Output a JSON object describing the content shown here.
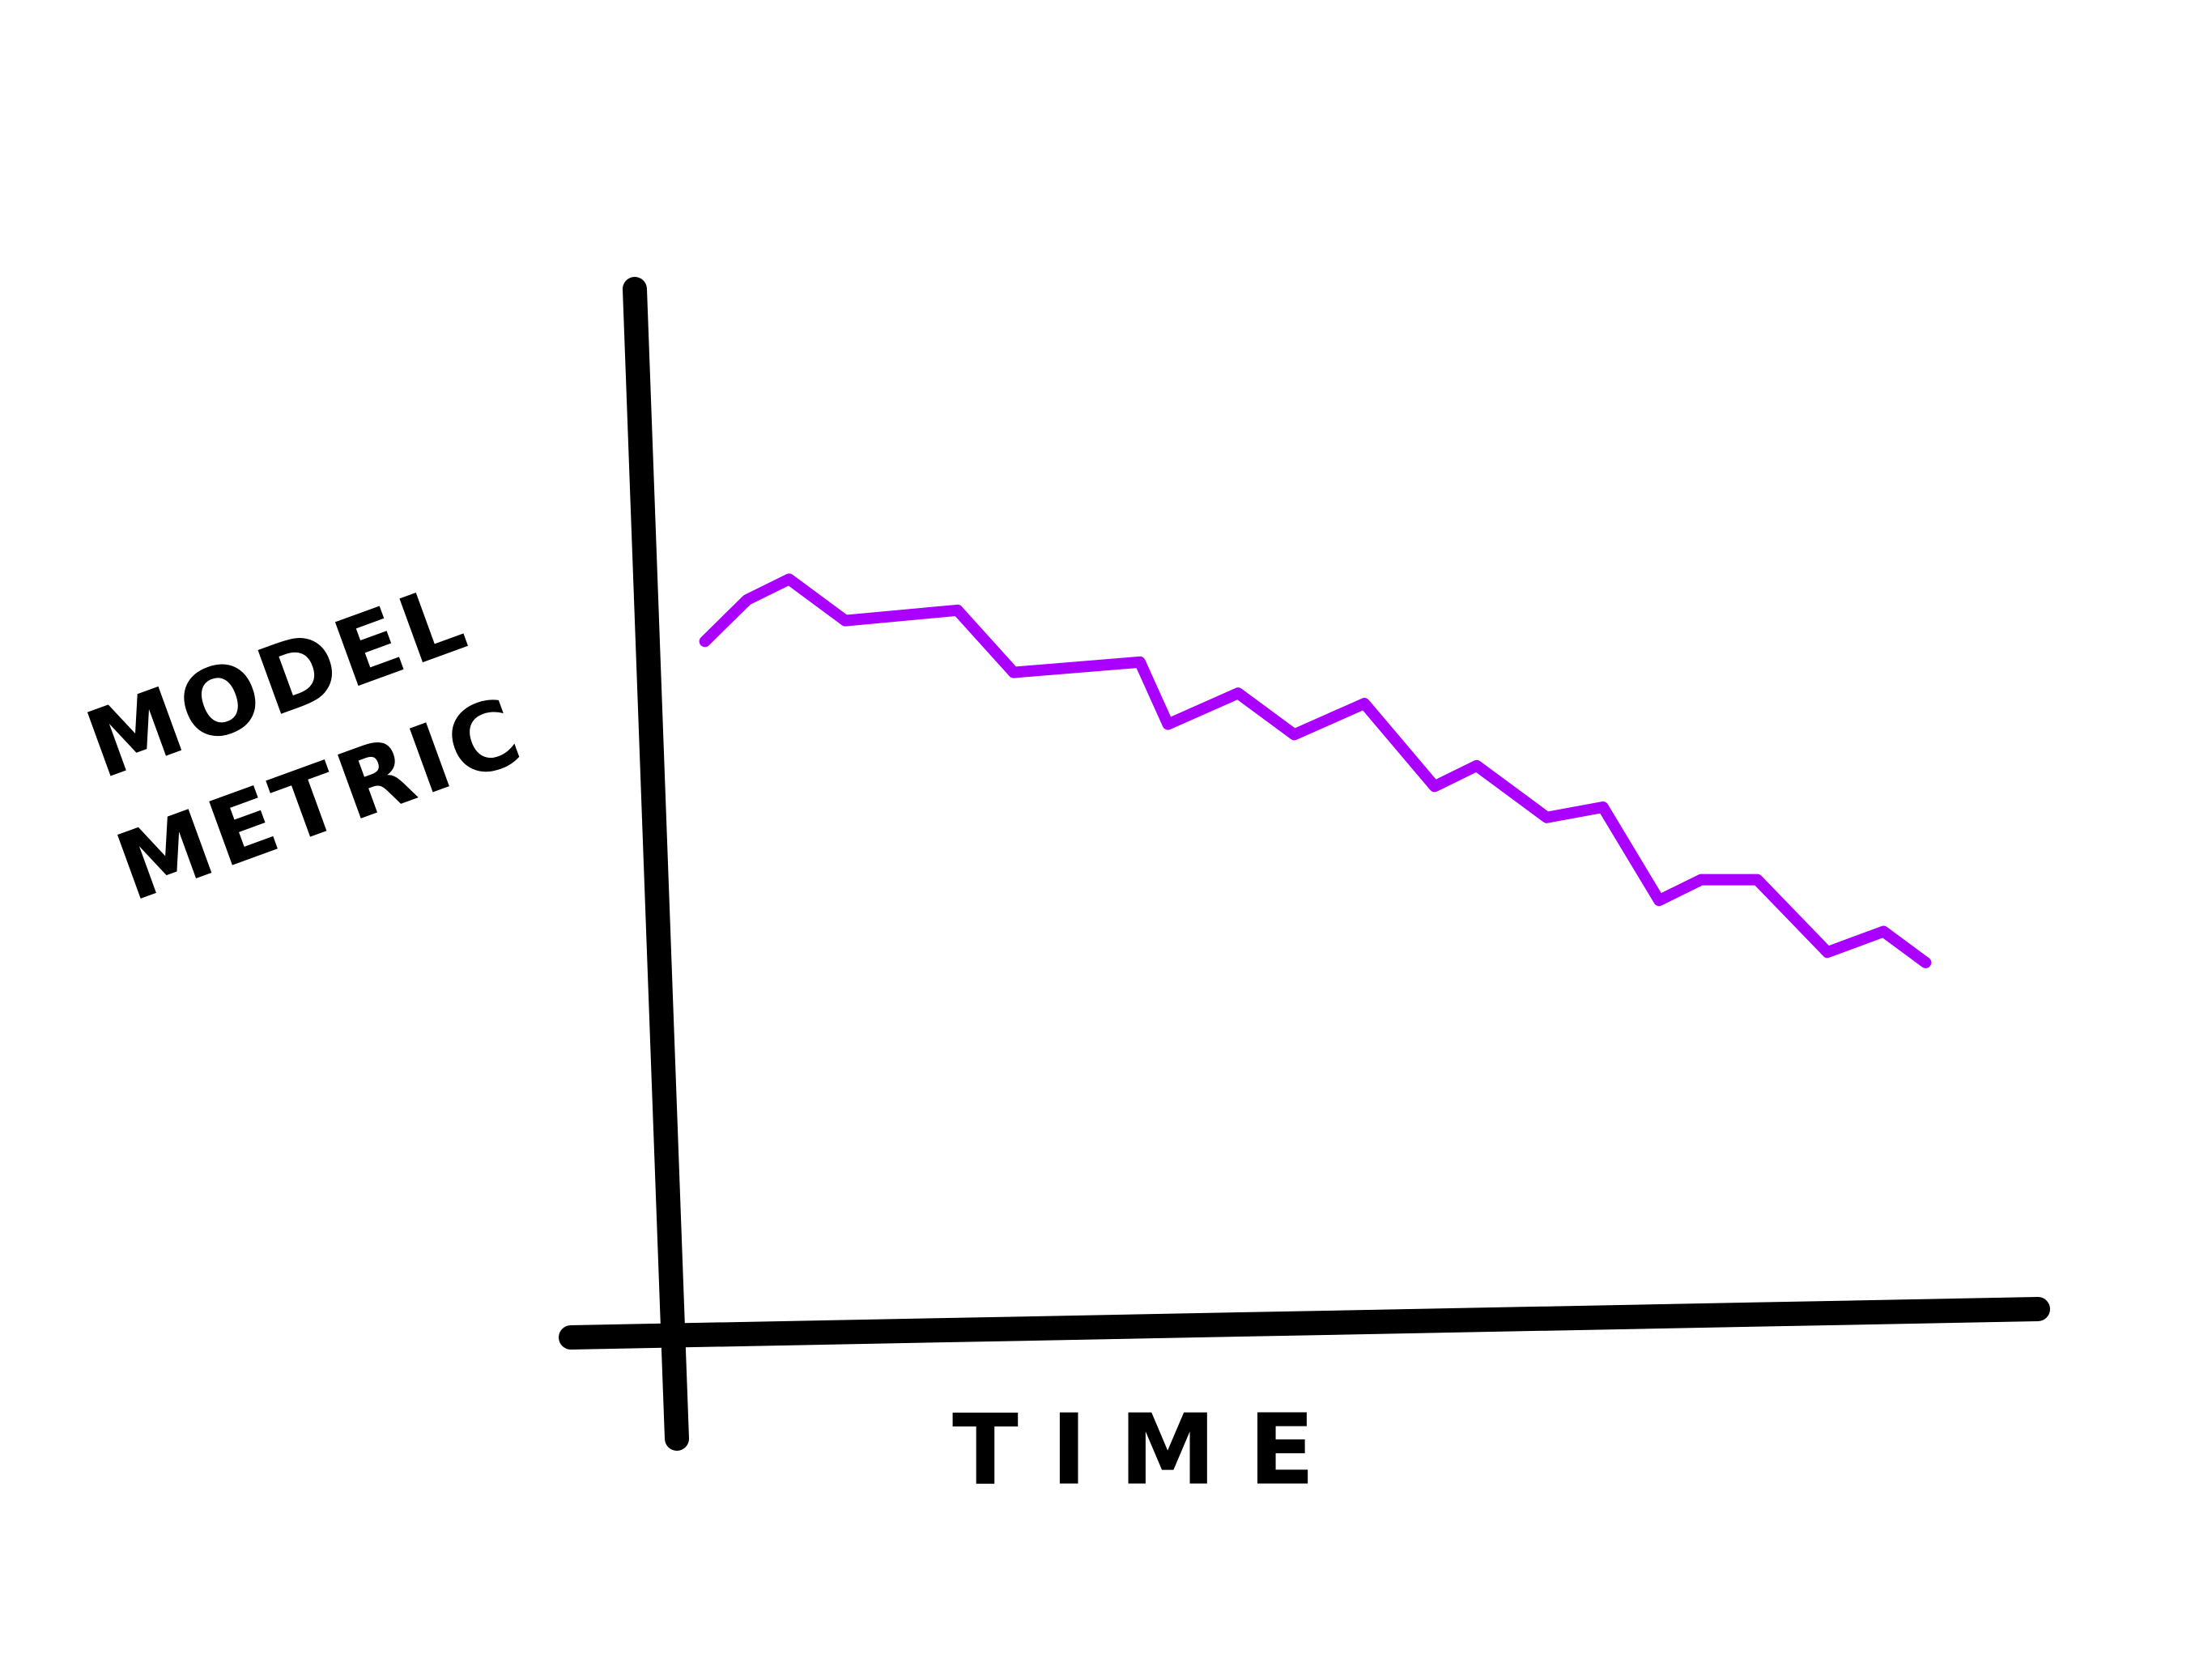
{
  "chart_data": {
    "type": "line",
    "x_label": "TIME",
    "y_label": "MODEL METRIC",
    "x": [
      5,
      8,
      11,
      15,
      23,
      27,
      36,
      38,
      43,
      47,
      52,
      57,
      60,
      65,
      69,
      73,
      76,
      80,
      85,
      89,
      92
    ],
    "values": [
      66,
      70,
      72,
      68,
      69,
      63,
      64,
      58,
      61,
      57,
      60,
      52,
      54,
      49,
      50,
      41,
      43,
      43,
      36,
      38,
      35
    ],
    "color": "#aa00ff",
    "xlim": [
      0,
      100
    ],
    "ylim": [
      0,
      100
    ]
  }
}
